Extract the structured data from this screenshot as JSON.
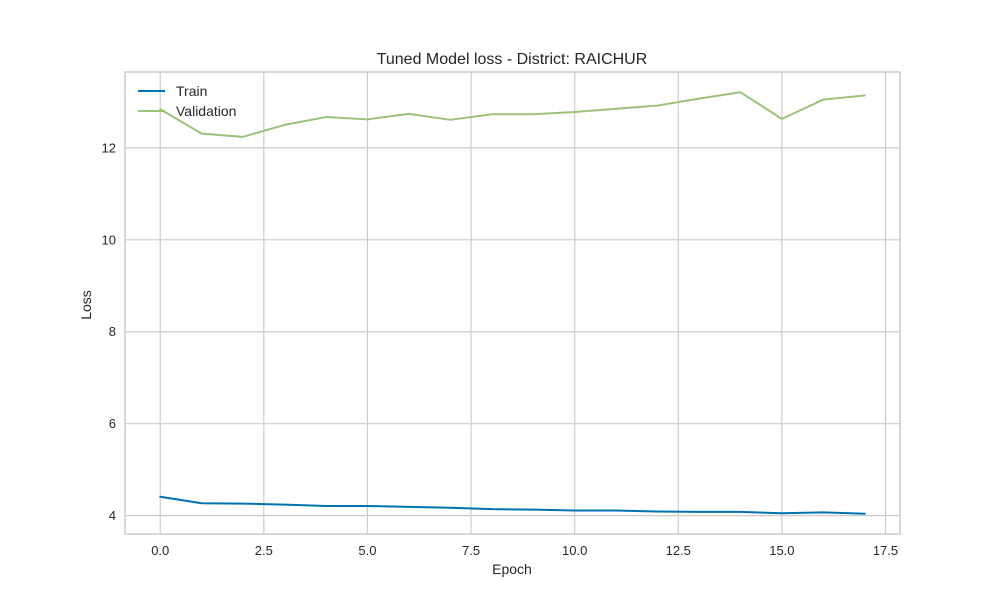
{
  "chart_data": {
    "type": "line",
    "title": "Tuned Model loss - District: RAICHUR",
    "xlabel": "Epoch",
    "ylabel": "Loss",
    "xlim": [
      -0.85,
      17.85
    ],
    "ylim": [
      3.6,
      13.65
    ],
    "xticks": [
      0,
      2.5,
      5,
      7.5,
      10,
      12.5,
      15,
      17.5
    ],
    "xtick_labels": [
      "0.0",
      "2.5",
      "5.0",
      "7.5",
      "10.0",
      "12.5",
      "15.0",
      "17.5"
    ],
    "yticks": [
      4,
      6,
      8,
      10,
      12
    ],
    "ytick_labels": [
      "4",
      "6",
      "8",
      "10",
      "12"
    ],
    "grid": true,
    "legend_position": "top-left",
    "x": [
      0,
      1,
      2,
      3,
      4,
      5,
      6,
      7,
      8,
      9,
      10,
      11,
      12,
      13,
      14,
      15,
      16,
      17
    ],
    "series": [
      {
        "name": "Train",
        "color": "#0072b2",
        "values": [
          4.41,
          4.27,
          4.26,
          4.24,
          4.21,
          4.21,
          4.19,
          4.17,
          4.14,
          4.13,
          4.11,
          4.11,
          4.09,
          4.08,
          4.08,
          4.05,
          4.07,
          4.04
        ]
      },
      {
        "name": "Validation",
        "color": "#9bc27a",
        "values": [
          12.84,
          12.31,
          12.24,
          12.5,
          12.67,
          12.62,
          12.74,
          12.61,
          12.73,
          12.73,
          12.78,
          12.85,
          12.92,
          13.07,
          13.21,
          12.63,
          13.05,
          13.14
        ]
      }
    ]
  }
}
